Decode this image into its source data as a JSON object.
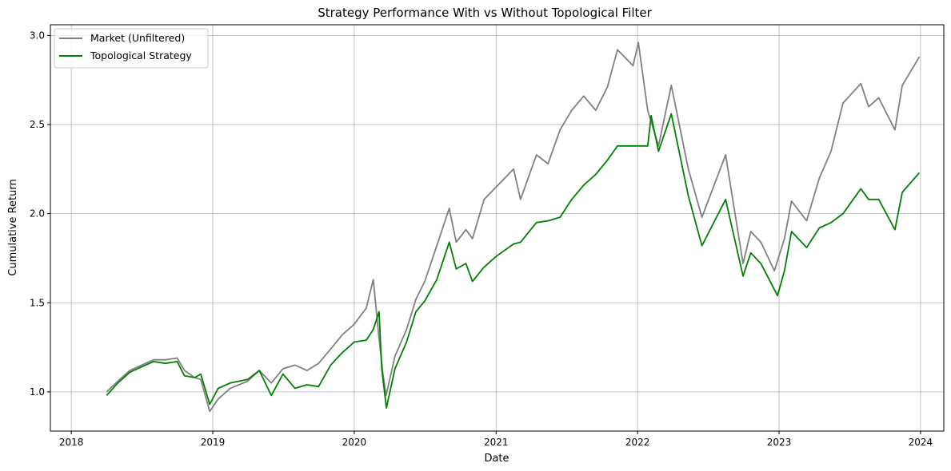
{
  "chart_data": {
    "type": "line",
    "title": "Strategy Performance With vs Without Topological Filter",
    "xlabel": "Date",
    "ylabel": "Cumulative Return",
    "xlim": [
      "2017-11-08",
      "2024-03-01"
    ],
    "ylim": [
      0.78,
      3.06
    ],
    "x_ticks": [
      "2018",
      "2019",
      "2020",
      "2021",
      "2022",
      "2023",
      "2024"
    ],
    "y_ticks": [
      "1.0",
      "1.5",
      "2.0",
      "2.5",
      "3.0"
    ],
    "grid": true,
    "legend_position": "upper-left",
    "series": [
      {
        "name": "Market (Unfiltered)",
        "color": "#808080",
        "points": [
          [
            "2018-04-02",
            1.0
          ],
          [
            "2018-05-01",
            1.06
          ],
          [
            "2018-06-01",
            1.12
          ],
          [
            "2018-07-01",
            1.15
          ],
          [
            "2018-08-01",
            1.18
          ],
          [
            "2018-09-01",
            1.18
          ],
          [
            "2018-10-01",
            1.19
          ],
          [
            "2018-10-20",
            1.12
          ],
          [
            "2018-11-15",
            1.08
          ],
          [
            "2018-12-01",
            1.07
          ],
          [
            "2018-12-24",
            0.89
          ],
          [
            "2019-01-15",
            0.96
          ],
          [
            "2019-02-15",
            1.02
          ],
          [
            "2019-04-01",
            1.06
          ],
          [
            "2019-05-01",
            1.12
          ],
          [
            "2019-06-01",
            1.05
          ],
          [
            "2019-07-01",
            1.13
          ],
          [
            "2019-08-01",
            1.15
          ],
          [
            "2019-09-01",
            1.12
          ],
          [
            "2019-10-01",
            1.16
          ],
          [
            "2019-11-01",
            1.24
          ],
          [
            "2019-12-01",
            1.32
          ],
          [
            "2020-01-01",
            1.38
          ],
          [
            "2020-02-01",
            1.47
          ],
          [
            "2020-02-19",
            1.63
          ],
          [
            "2020-03-05",
            1.3
          ],
          [
            "2020-03-15",
            1.1
          ],
          [
            "2020-03-23",
            0.98
          ],
          [
            "2020-04-15",
            1.2
          ],
          [
            "2020-05-15",
            1.35
          ],
          [
            "2020-06-08",
            1.52
          ],
          [
            "2020-07-01",
            1.62
          ],
          [
            "2020-08-01",
            1.82
          ],
          [
            "2020-09-02",
            2.03
          ],
          [
            "2020-09-20",
            1.84
          ],
          [
            "2020-10-15",
            1.91
          ],
          [
            "2020-11-01",
            1.86
          ],
          [
            "2020-12-01",
            2.08
          ],
          [
            "2021-01-01",
            2.15
          ],
          [
            "2021-02-15",
            2.25
          ],
          [
            "2021-03-05",
            2.08
          ],
          [
            "2021-04-15",
            2.33
          ],
          [
            "2021-05-15",
            2.28
          ],
          [
            "2021-06-15",
            2.47
          ],
          [
            "2021-07-15",
            2.58
          ],
          [
            "2021-08-15",
            2.66
          ],
          [
            "2021-09-15",
            2.58
          ],
          [
            "2021-10-15",
            2.71
          ],
          [
            "2021-11-10",
            2.92
          ],
          [
            "2021-12-20",
            2.83
          ],
          [
            "2022-01-03",
            2.96
          ],
          [
            "2022-01-27",
            2.58
          ],
          [
            "2022-02-24",
            2.38
          ],
          [
            "2022-03-29",
            2.72
          ],
          [
            "2022-05-12",
            2.25
          ],
          [
            "2022-06-16",
            1.98
          ],
          [
            "2022-08-16",
            2.33
          ],
          [
            "2022-09-30",
            1.72
          ],
          [
            "2022-10-20",
            1.9
          ],
          [
            "2022-11-15",
            1.84
          ],
          [
            "2022-12-20",
            1.68
          ],
          [
            "2023-01-15",
            1.86
          ],
          [
            "2023-02-02",
            2.07
          ],
          [
            "2023-03-13",
            1.96
          ],
          [
            "2023-04-15",
            2.2
          ],
          [
            "2023-05-15",
            2.35
          ],
          [
            "2023-06-15",
            2.62
          ],
          [
            "2023-07-31",
            2.73
          ],
          [
            "2023-08-20",
            2.6
          ],
          [
            "2023-09-15",
            2.65
          ],
          [
            "2023-10-27",
            2.47
          ],
          [
            "2023-11-15",
            2.72
          ],
          [
            "2023-12-29",
            2.88
          ]
        ]
      },
      {
        "name": "Topological Strategy",
        "color": "#008000",
        "points": [
          [
            "2018-04-02",
            0.98
          ],
          [
            "2018-05-01",
            1.05
          ],
          [
            "2018-06-01",
            1.11
          ],
          [
            "2018-07-01",
            1.14
          ],
          [
            "2018-08-01",
            1.17
          ],
          [
            "2018-09-01",
            1.16
          ],
          [
            "2018-10-01",
            1.17
          ],
          [
            "2018-10-20",
            1.09
          ],
          [
            "2018-11-15",
            1.08
          ],
          [
            "2018-12-01",
            1.1
          ],
          [
            "2018-12-24",
            0.93
          ],
          [
            "2019-01-15",
            1.02
          ],
          [
            "2019-02-15",
            1.05
          ],
          [
            "2019-04-01",
            1.07
          ],
          [
            "2019-05-01",
            1.12
          ],
          [
            "2019-06-01",
            0.98
          ],
          [
            "2019-07-01",
            1.1
          ],
          [
            "2019-08-01",
            1.02
          ],
          [
            "2019-09-01",
            1.04
          ],
          [
            "2019-10-01",
            1.03
          ],
          [
            "2019-11-01",
            1.15
          ],
          [
            "2019-12-01",
            1.22
          ],
          [
            "2020-01-01",
            1.28
          ],
          [
            "2020-02-01",
            1.29
          ],
          [
            "2020-02-19",
            1.35
          ],
          [
            "2020-03-05",
            1.45
          ],
          [
            "2020-03-12",
            1.13
          ],
          [
            "2020-03-24",
            0.91
          ],
          [
            "2020-04-15",
            1.13
          ],
          [
            "2020-05-15",
            1.28
          ],
          [
            "2020-06-08",
            1.45
          ],
          [
            "2020-07-01",
            1.51
          ],
          [
            "2020-08-01",
            1.63
          ],
          [
            "2020-09-02",
            1.84
          ],
          [
            "2020-09-20",
            1.69
          ],
          [
            "2020-10-15",
            1.72
          ],
          [
            "2020-11-01",
            1.62
          ],
          [
            "2020-12-01",
            1.7
          ],
          [
            "2021-01-01",
            1.76
          ],
          [
            "2021-02-15",
            1.83
          ],
          [
            "2021-03-05",
            1.84
          ],
          [
            "2021-04-15",
            1.95
          ],
          [
            "2021-05-15",
            1.96
          ],
          [
            "2021-06-15",
            1.98
          ],
          [
            "2021-07-15",
            2.08
          ],
          [
            "2021-08-15",
            2.16
          ],
          [
            "2021-09-15",
            2.22
          ],
          [
            "2021-10-15",
            2.3
          ],
          [
            "2021-11-10",
            2.38
          ],
          [
            "2021-12-20",
            2.38
          ],
          [
            "2022-01-27",
            2.38
          ],
          [
            "2022-02-05",
            2.55
          ],
          [
            "2022-02-24",
            2.35
          ],
          [
            "2022-03-29",
            2.56
          ],
          [
            "2022-05-12",
            2.1
          ],
          [
            "2022-06-16",
            1.82
          ],
          [
            "2022-08-16",
            2.08
          ],
          [
            "2022-09-30",
            1.65
          ],
          [
            "2022-10-20",
            1.78
          ],
          [
            "2022-11-15",
            1.72
          ],
          [
            "2022-12-28",
            1.54
          ],
          [
            "2023-01-15",
            1.68
          ],
          [
            "2023-02-02",
            1.9
          ],
          [
            "2023-03-13",
            1.81
          ],
          [
            "2023-04-15",
            1.92
          ],
          [
            "2023-05-15",
            1.95
          ],
          [
            "2023-06-15",
            2.0
          ],
          [
            "2023-07-31",
            2.14
          ],
          [
            "2023-08-20",
            2.08
          ],
          [
            "2023-09-15",
            2.08
          ],
          [
            "2023-10-27",
            1.91
          ],
          [
            "2023-11-15",
            2.12
          ],
          [
            "2023-12-29",
            2.23
          ]
        ]
      }
    ]
  }
}
